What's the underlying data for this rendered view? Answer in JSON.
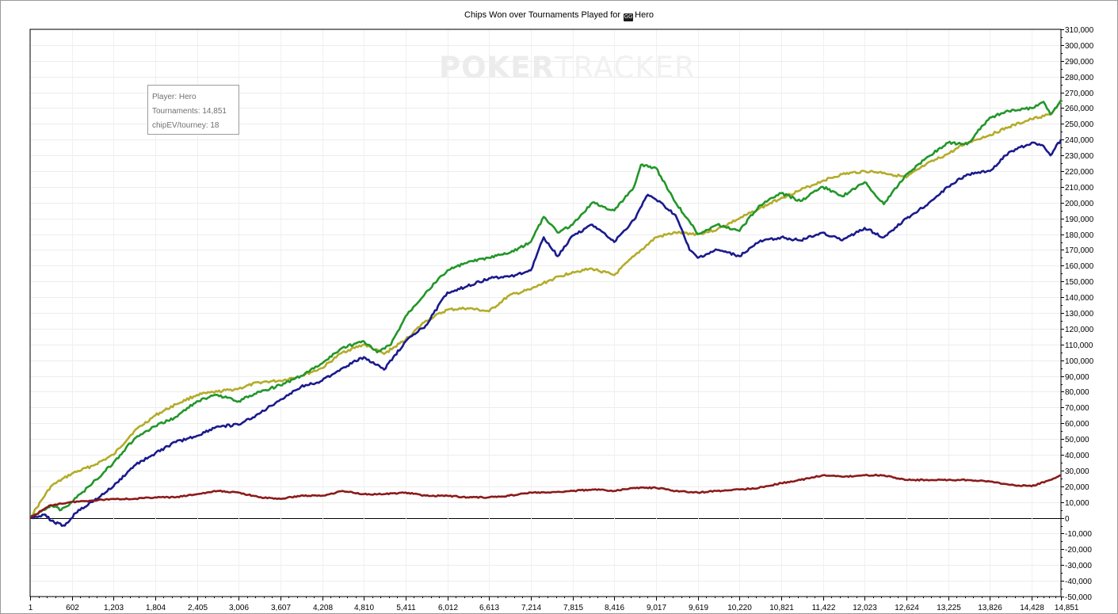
{
  "header": {
    "title_prefix": "Chips Won over Tournaments Played for",
    "hero_icon": "player-site-icon",
    "hero_name": "Hero"
  },
  "watermark": {
    "part1": "POKER",
    "part2": "TRACKER"
  },
  "tooltip": {
    "player": "Player: Hero",
    "tournaments": "Tournaments: 14,851",
    "chipev": "chipEV/tourney: 18"
  },
  "chart_data": {
    "type": "line",
    "title": "Chips Won over Tournaments Played for Hero",
    "xlim": [
      1,
      14851
    ],
    "ylim": [
      -50000,
      310000
    ],
    "x_ticks": [
      1,
      602,
      1203,
      1804,
      2405,
      3006,
      3607,
      4208,
      4810,
      5411,
      6012,
      6613,
      7214,
      7815,
      8416,
      9017,
      9619,
      10220,
      10821,
      11422,
      12023,
      12624,
      13225,
      13826,
      14428,
      14851
    ],
    "x_tick_labels": [
      "1",
      "602",
      "1,203",
      "1,804",
      "2,405",
      "3,006",
      "3,607",
      "4,208",
      "4,810",
      "5,411",
      "6,012",
      "6,613",
      "7,214",
      "7,815",
      "8,416",
      "9,017",
      "9,619",
      "10,220",
      "10,821",
      "11,422",
      "12,023",
      "12,624",
      "13,225",
      "13,826",
      "14,428",
      "14,851"
    ],
    "y_ticks": [
      -50000,
      -40000,
      -30000,
      -20000,
      -10000,
      0,
      10000,
      20000,
      30000,
      40000,
      50000,
      60000,
      70000,
      80000,
      90000,
      100000,
      110000,
      120000,
      130000,
      140000,
      150000,
      160000,
      170000,
      180000,
      190000,
      200000,
      210000,
      220000,
      230000,
      240000,
      250000,
      260000,
      270000,
      280000,
      290000,
      300000,
      310000
    ],
    "y_tick_labels": [
      "-50,000",
      "-40,000",
      "-30,000",
      "-20,000",
      "-10,000",
      "0",
      "10,000",
      "20,000",
      "30,000",
      "40,000",
      "50,000",
      "60,000",
      "70,000",
      "80,000",
      "90,000",
      "100,000",
      "110,000",
      "120,000",
      "130,000",
      "140,000",
      "150,000",
      "160,000",
      "170,000",
      "180,000",
      "190,000",
      "200,000",
      "210,000",
      "220,000",
      "230,000",
      "240,000",
      "250,000",
      "260,000",
      "270,000",
      "280,000",
      "290,000",
      "300,000",
      "310,000"
    ],
    "grid": true,
    "axis_side": "right",
    "series": [
      {
        "color": "#b3ac2a",
        "x": [
          1,
          300,
          600,
          900,
          1203,
          1500,
          1804,
          2100,
          2405,
          2700,
          3006,
          3300,
          3607,
          3900,
          4208,
          4500,
          4810,
          5100,
          5411,
          5700,
          6012,
          6300,
          6613,
          6900,
          7214,
          7500,
          7815,
          8100,
          8416,
          8700,
          9017,
          9300,
          9619,
          9900,
          10220,
          10500,
          10821,
          11100,
          11422,
          11700,
          12023,
          12300,
          12624,
          12900,
          13225,
          13500,
          13826,
          14100,
          14428,
          14700,
          14851
        ],
        "y": [
          0,
          20000,
          28000,
          33000,
          40000,
          55000,
          65000,
          72000,
          78000,
          80000,
          82000,
          86000,
          87000,
          90000,
          95000,
          105000,
          110000,
          104000,
          113000,
          125000,
          132000,
          133000,
          131000,
          141000,
          145000,
          151000,
          156000,
          158000,
          154000,
          166000,
          178000,
          181000,
          180000,
          183000,
          190000,
          196000,
          203000,
          208000,
          214000,
          218000,
          220000,
          219000,
          216000,
          224000,
          231000,
          238000,
          243000,
          248000,
          253000,
          256000,
          264000
        ]
      },
      {
        "color": "#22962a",
        "x": [
          1,
          300,
          450,
          600,
          900,
          1203,
          1500,
          1804,
          2100,
          2405,
          2700,
          3006,
          3300,
          3607,
          3900,
          4208,
          4500,
          4810,
          5000,
          5200,
          5411,
          5700,
          6012,
          6300,
          6613,
          6900,
          7214,
          7400,
          7600,
          7815,
          8100,
          8416,
          8700,
          8800,
          9017,
          9300,
          9500,
          9619,
          9900,
          10220,
          10500,
          10821,
          11100,
          11422,
          11700,
          12023,
          12300,
          12624,
          12900,
          13225,
          13500,
          13826,
          14100,
          14428,
          14600,
          14700,
          14851
        ],
        "y": [
          0,
          8000,
          5000,
          10000,
          22000,
          35000,
          50000,
          58000,
          64000,
          74000,
          78000,
          74000,
          80000,
          84000,
          90000,
          98000,
          108000,
          112000,
          105000,
          110000,
          128000,
          143000,
          157000,
          162000,
          165000,
          168000,
          175000,
          191000,
          181000,
          186000,
          200000,
          195000,
          210000,
          224000,
          222000,
          200000,
          188000,
          180000,
          186000,
          182000,
          198000,
          206000,
          201000,
          210000,
          204000,
          213000,
          199000,
          218000,
          228000,
          238000,
          237000,
          254000,
          258000,
          260000,
          264000,
          256000,
          265000
        ]
      },
      {
        "color": "#1a1a8c",
        "x": [
          1,
          200,
          350,
          500,
          700,
          900,
          1203,
          1500,
          1804,
          2100,
          2405,
          2700,
          3006,
          3300,
          3607,
          3900,
          4208,
          4500,
          4810,
          5100,
          5411,
          5700,
          6012,
          6300,
          6613,
          6900,
          7214,
          7400,
          7600,
          7815,
          8100,
          8416,
          8700,
          8900,
          9017,
          9300,
          9500,
          9619,
          9900,
          10220,
          10500,
          10821,
          11100,
          11422,
          11700,
          12023,
          12300,
          12624,
          12900,
          13225,
          13500,
          13826,
          14100,
          14428,
          14600,
          14700,
          14851
        ],
        "y": [
          0,
          2000,
          -3000,
          -5000,
          5000,
          10000,
          20000,
          33000,
          41000,
          48000,
          52000,
          58000,
          59000,
          66000,
          75000,
          83000,
          87000,
          95000,
          102000,
          94000,
          112000,
          122000,
          143000,
          147000,
          152000,
          153000,
          157000,
          178000,
          166000,
          179000,
          186000,
          175000,
          189000,
          205000,
          202000,
          192000,
          170000,
          165000,
          170000,
          166000,
          175000,
          178000,
          176000,
          181000,
          176000,
          184000,
          178000,
          190000,
          198000,
          210000,
          218000,
          220000,
          232000,
          238000,
          236000,
          230000,
          240000
        ]
      },
      {
        "color": "#8b1a1a",
        "x": [
          1,
          300,
          600,
          900,
          1203,
          1500,
          1804,
          2100,
          2405,
          2700,
          3006,
          3300,
          3607,
          3900,
          4208,
          4500,
          4810,
          5100,
          5411,
          5700,
          6012,
          6300,
          6613,
          6900,
          7214,
          7500,
          7815,
          8100,
          8416,
          8700,
          9017,
          9300,
          9619,
          9900,
          10220,
          10500,
          10821,
          11100,
          11422,
          11700,
          12023,
          12300,
          12624,
          12900,
          13225,
          13500,
          13826,
          14100,
          14428,
          14700,
          14851
        ],
        "y": [
          0,
          8000,
          10000,
          11000,
          12000,
          12000,
          13000,
          13000,
          15000,
          17000,
          16000,
          13000,
          12000,
          14000,
          14000,
          17000,
          15000,
          15000,
          16000,
          14000,
          14000,
          13000,
          13000,
          14000,
          16000,
          16000,
          17000,
          18000,
          17000,
          19000,
          19000,
          17000,
          16000,
          17000,
          18000,
          19000,
          22000,
          24000,
          27000,
          26000,
          27000,
          27000,
          24000,
          24000,
          24000,
          24000,
          23000,
          21000,
          20000,
          24000,
          27000
        ]
      }
    ]
  }
}
